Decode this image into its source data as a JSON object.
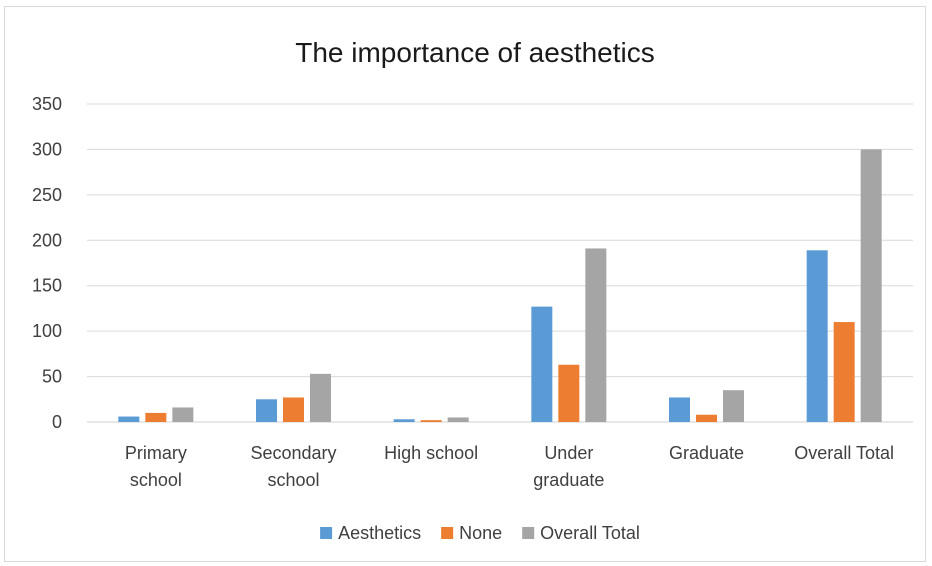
{
  "chart_data": {
    "type": "bar",
    "title": "The importance of aesthetics",
    "xlabel": "",
    "ylabel": "",
    "categories": [
      [
        "Primary",
        "school"
      ],
      [
        "Secondary",
        "school"
      ],
      [
        "High school"
      ],
      [
        "Under",
        "graduate"
      ],
      [
        "Graduate"
      ],
      [
        "Overall Total"
      ]
    ],
    "series": [
      {
        "name": "Aesthetics",
        "color": "#5b9bd5",
        "values": [
          6,
          25,
          3,
          127,
          27,
          189
        ]
      },
      {
        "name": "None",
        "color": "#ed7d31",
        "values": [
          10,
          27,
          2,
          63,
          8,
          110
        ]
      },
      {
        "name": "Overall Total",
        "color": "#a5a5a5",
        "values": [
          16,
          53,
          5,
          191,
          35,
          300
        ]
      }
    ],
    "ylim": [
      0,
      350
    ],
    "yticks": [
      0,
      50,
      100,
      150,
      200,
      250,
      300,
      350
    ],
    "grid": true,
    "legend_position": "bottom"
  }
}
